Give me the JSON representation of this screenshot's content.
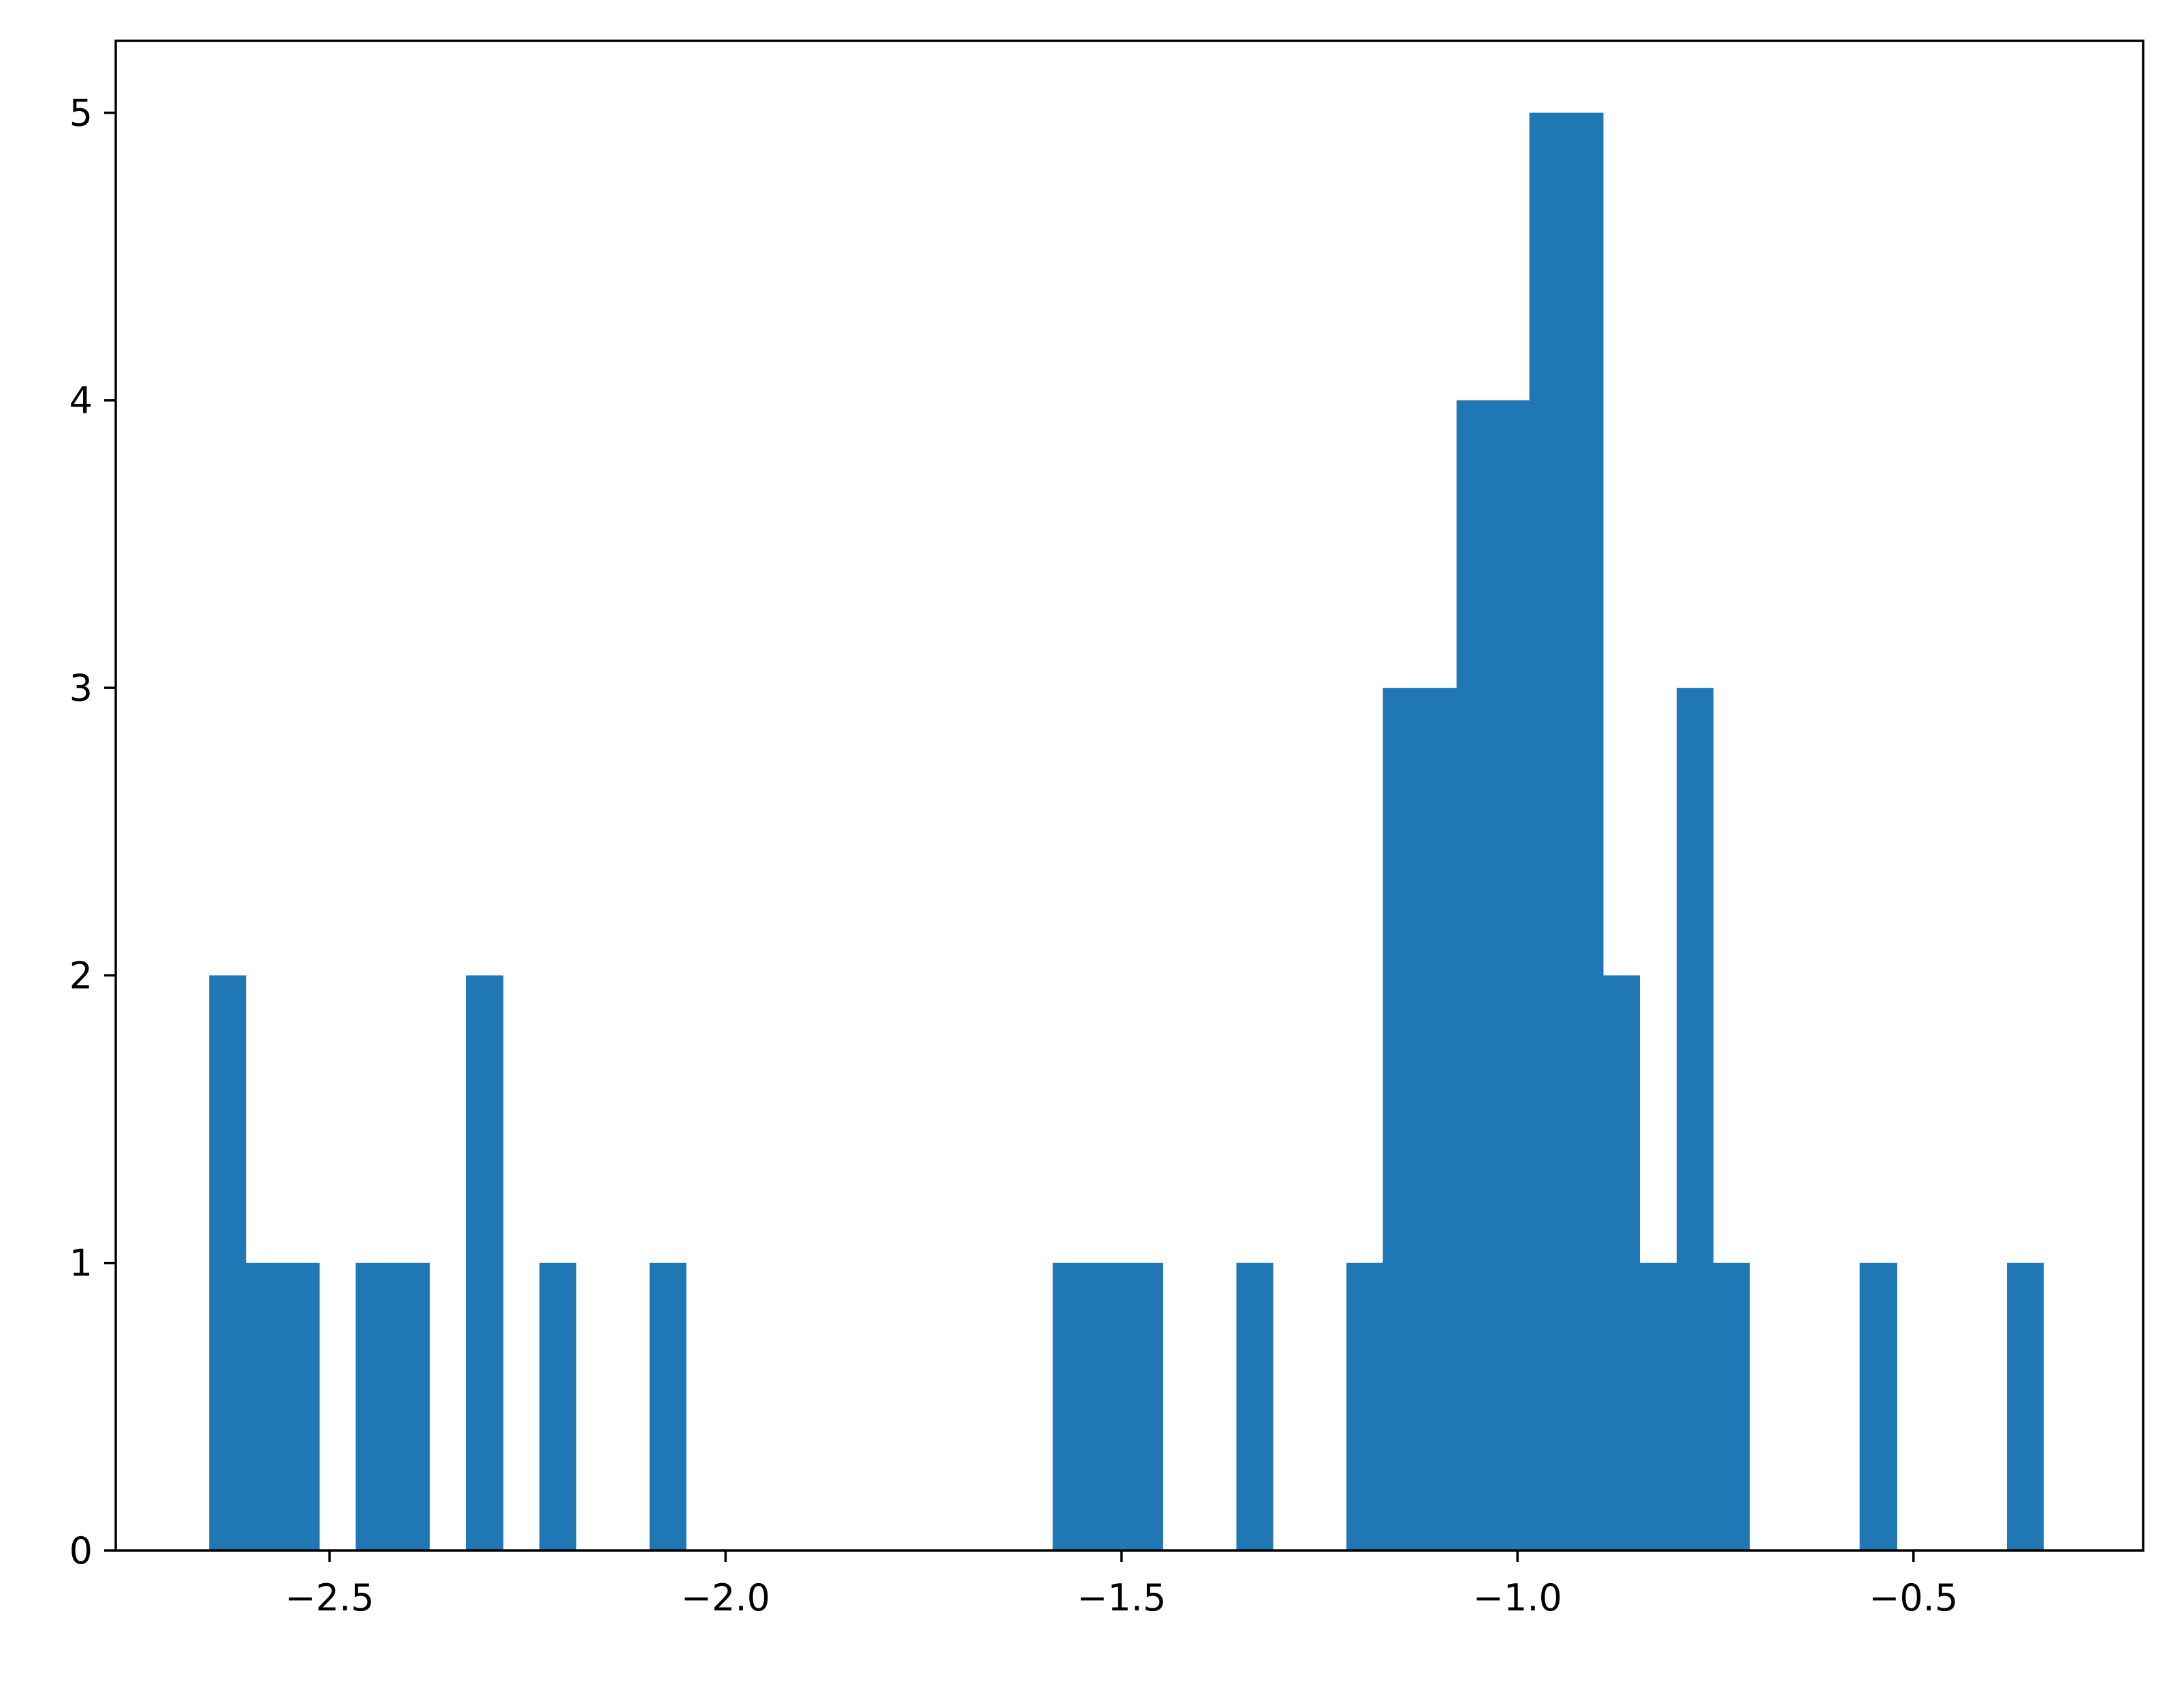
{
  "colors": {
    "bar": "#1f77b4",
    "axes": "#000000",
    "background": "#ffffff"
  },
  "chart_data": {
    "type": "bar",
    "subtype": "histogram",
    "title": "",
    "xlabel": "",
    "ylabel": "",
    "xlim": [
      -2.77,
      -0.21
    ],
    "ylim": [
      0,
      5.25
    ],
    "grid": false,
    "bin_width": 0.0463,
    "bars": [
      {
        "x0": -2.652,
        "x1": -2.606,
        "count": 2
      },
      {
        "x0": -2.606,
        "x1": -2.559,
        "count": 1
      },
      {
        "x0": -2.559,
        "x1": -2.513,
        "count": 1
      },
      {
        "x0": -2.467,
        "x1": -2.42,
        "count": 1
      },
      {
        "x0": -2.42,
        "x1": -2.374,
        "count": 1
      },
      {
        "x0": -2.328,
        "x1": -2.281,
        "count": 2
      },
      {
        "x0": -2.235,
        "x1": -2.189,
        "count": 1
      },
      {
        "x0": -2.096,
        "x1": -2.05,
        "count": 1
      },
      {
        "x0": -1.587,
        "x1": -1.541,
        "count": 1
      },
      {
        "x0": -1.541,
        "x1": -1.494,
        "count": 1
      },
      {
        "x0": -1.494,
        "x1": -1.448,
        "count": 1
      },
      {
        "x0": -1.355,
        "x1": -1.309,
        "count": 1
      },
      {
        "x0": -1.216,
        "x1": -1.17,
        "count": 1
      },
      {
        "x0": -1.17,
        "x1": -1.124,
        "count": 3
      },
      {
        "x0": -1.124,
        "x1": -1.077,
        "count": 3
      },
      {
        "x0": -1.077,
        "x1": -1.031,
        "count": 4
      },
      {
        "x0": -1.031,
        "x1": -0.985,
        "count": 4
      },
      {
        "x0": -0.985,
        "x1": -0.938,
        "count": 5
      },
      {
        "x0": -0.938,
        "x1": -0.892,
        "count": 5
      },
      {
        "x0": -0.892,
        "x1": -0.846,
        "count": 2
      },
      {
        "x0": -0.846,
        "x1": -0.799,
        "count": 1
      },
      {
        "x0": -0.799,
        "x1": -0.753,
        "count": 3
      },
      {
        "x0": -0.753,
        "x1": -0.707,
        "count": 1
      },
      {
        "x0": -0.568,
        "x1": -0.521,
        "count": 1
      },
      {
        "x0": -0.382,
        "x1": -0.336,
        "count": 1
      }
    ],
    "x_ticks": [
      -2.5,
      -2.0,
      -1.5,
      -1.0,
      -0.5
    ],
    "x_tick_labels": [
      "−2.5",
      "−2.0",
      "−1.5",
      "−1.0",
      "−0.5"
    ],
    "y_ticks": [
      0,
      1,
      2,
      3,
      4,
      5
    ],
    "y_tick_labels": [
      "0",
      "1",
      "2",
      "3",
      "4",
      "5"
    ]
  }
}
